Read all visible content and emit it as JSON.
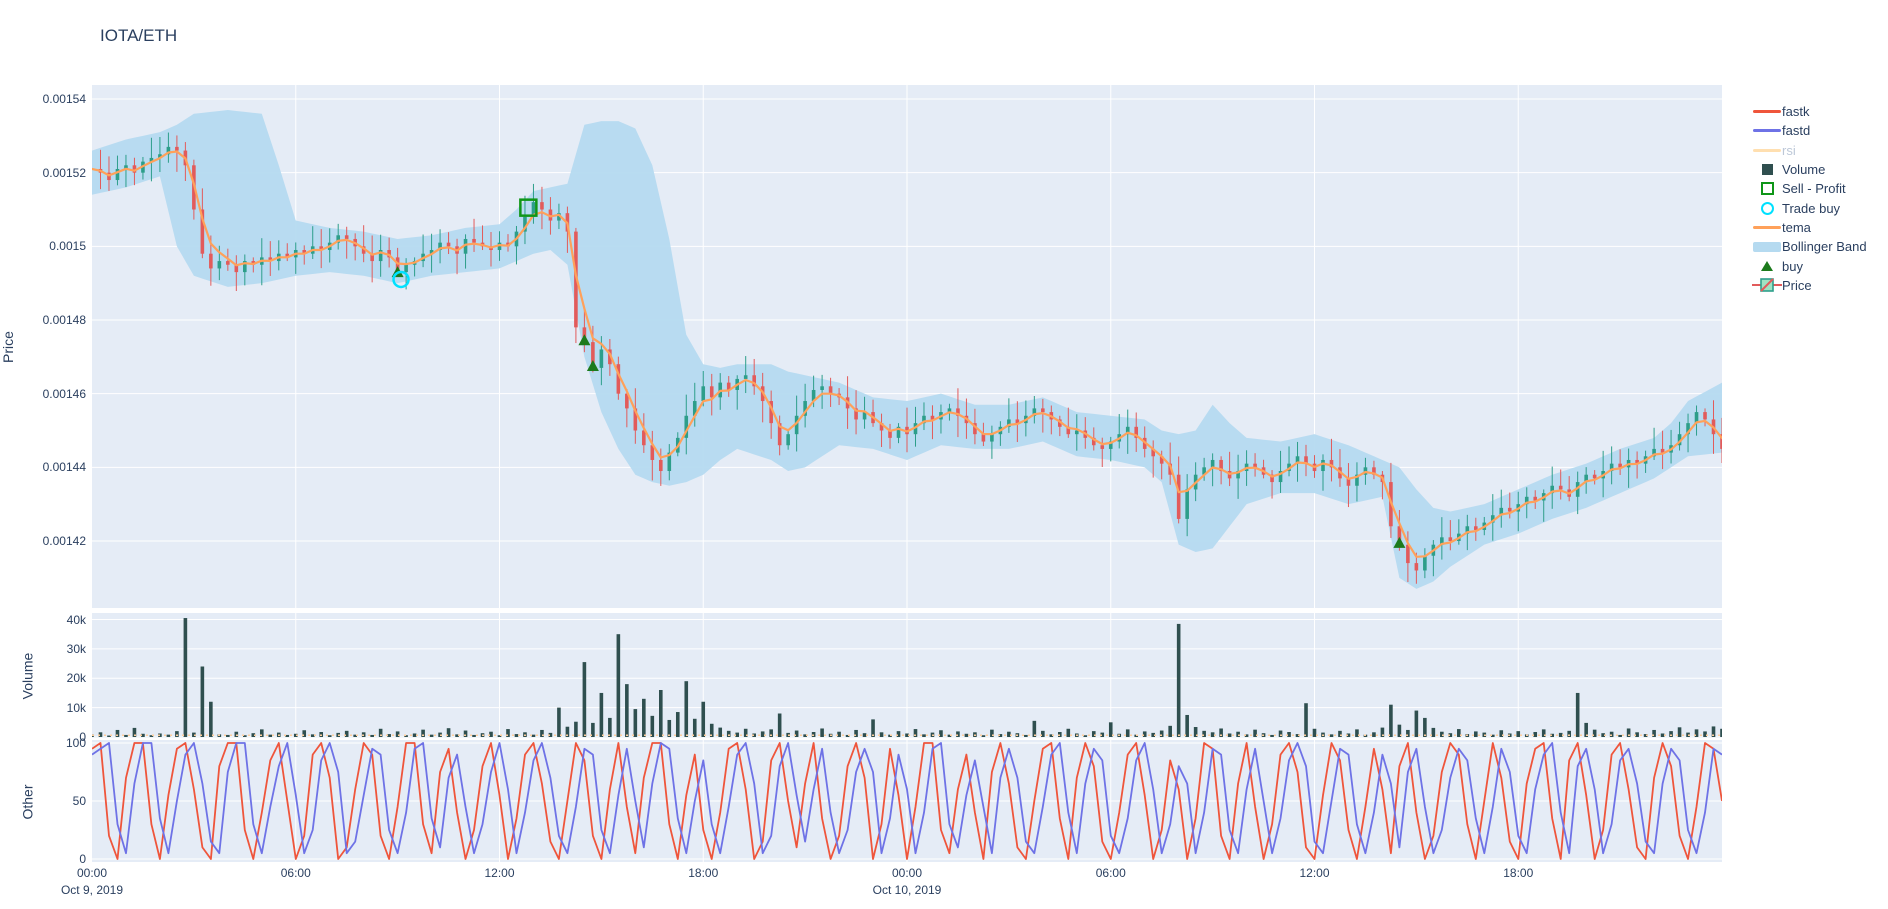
{
  "title": "IOTA/ETH",
  "colors": {
    "plot_bg": "#e5ecf6",
    "grid": "#ffffff",
    "text": "#2a3f5f",
    "dim_text": "#bdc8d8",
    "candle_up": "#2d9e8a",
    "candle_down": "#e25b5b",
    "tema": "#ffa15a",
    "band": "#b5daf0",
    "fastk": "#ef553b",
    "fastd": "#6e72e6",
    "rsi_dim": "#ffdfb0",
    "volume_bar": "#2f4f4f",
    "buy": "#1c7a1c",
    "sell": "#0f9618",
    "trade_buy": "#00e1ff",
    "vol_baseline": "#ffcf9e"
  },
  "legend": {
    "items": [
      {
        "label": "fastk",
        "type": "line",
        "color": "#ef553b",
        "dimmed": false
      },
      {
        "label": "fastd",
        "type": "line",
        "color": "#6e72e6",
        "dimmed": false
      },
      {
        "label": "rsi",
        "type": "line",
        "color": "#ffdfb0",
        "dimmed": true
      },
      {
        "label": "Volume",
        "type": "square",
        "color": "#2f4f4f",
        "dimmed": false
      },
      {
        "label": "Sell - Profit",
        "type": "square-open",
        "color": "#0f9618",
        "dimmed": false
      },
      {
        "label": "Trade buy",
        "type": "circle-open",
        "color": "#00e1ff",
        "dimmed": false
      },
      {
        "label": "tema",
        "type": "line",
        "color": "#ffa15a",
        "dimmed": false
      },
      {
        "label": "Bollinger Band",
        "type": "band",
        "color": "#b5daf0",
        "dimmed": false
      },
      {
        "label": "buy",
        "type": "triangle",
        "color": "#1c7a1c",
        "dimmed": false
      },
      {
        "label": "Price",
        "type": "candle",
        "color": "#2d9e8a",
        "dimmed": false
      }
    ]
  },
  "axes": {
    "price": {
      "title": "Price",
      "ticks": [
        {
          "label": "0.00154",
          "v": 154
        },
        {
          "label": "0.00152",
          "v": 152
        },
        {
          "label": "0.0015",
          "v": 150
        },
        {
          "label": "0.00148",
          "v": 148
        },
        {
          "label": "0.00146",
          "v": 146
        },
        {
          "label": "0.00144",
          "v": 144
        },
        {
          "label": "0.00142",
          "v": 142
        }
      ]
    },
    "volume": {
      "title": "Volume",
      "ticks": [
        {
          "label": "0",
          "v": 0
        },
        {
          "label": "10k",
          "v": 10000
        },
        {
          "label": "20k",
          "v": 20000
        },
        {
          "label": "30k",
          "v": 30000
        },
        {
          "label": "40k",
          "v": 40000
        }
      ]
    },
    "other": {
      "title": "Other",
      "ticks": [
        {
          "label": "0",
          "v": 0
        },
        {
          "label": "50",
          "v": 50
        },
        {
          "label": "100",
          "v": 100
        }
      ]
    },
    "x": {
      "ticks": [
        {
          "label": "00:00",
          "sub": "Oct 9, 2019",
          "t": 0
        },
        {
          "label": "06:00",
          "sub": "",
          "t": 6
        },
        {
          "label": "12:00",
          "sub": "",
          "t": 12
        },
        {
          "label": "18:00",
          "sub": "",
          "t": 18
        },
        {
          "label": "00:00",
          "sub": "Oct 10, 2019",
          "t": 24
        },
        {
          "label": "06:00",
          "sub": "",
          "t": 30
        },
        {
          "label": "12:00",
          "sub": "",
          "t": 36
        },
        {
          "label": "18:00",
          "sub": "",
          "t": 42
        }
      ]
    }
  },
  "chart_data": {
    "type": "candlestick",
    "pair": "IOTA/ETH",
    "time_axis": "hours from Oct 9 2019 00:00, total 48h (to Oct 11 00:00)",
    "step_h": 0.25,
    "hours_total": 48,
    "price_unit": 1e-05,
    "price_range": [
      140.2,
      154.4
    ],
    "close": [
      152.1,
      152.0,
      151.8,
      152.1,
      152.2,
      152.0,
      152.3,
      152.4,
      152.5,
      152.7,
      152.6,
      152.2,
      151.0,
      149.8,
      149.4,
      149.6,
      149.5,
      149.3,
      149.6,
      149.5,
      149.7,
      149.6,
      149.8,
      149.7,
      149.9,
      149.8,
      150.0,
      149.9,
      150.1,
      150.3,
      150.2,
      150.0,
      149.8,
      149.6,
      149.9,
      149.7,
      149.3,
      149.5,
      149.6,
      149.8,
      149.9,
      150.1,
      150.0,
      149.8,
      150.2,
      150.1,
      150.0,
      149.9,
      150.1,
      150.0,
      150.4,
      150.8,
      151.2,
      151.0,
      150.7,
      150.9,
      150.4,
      147.8,
      147.4,
      146.7,
      147.2,
      146.8,
      146.0,
      145.6,
      145.0,
      144.6,
      144.2,
      143.9,
      144.4,
      144.8,
      145.4,
      145.8,
      146.2,
      145.9,
      146.3,
      146.1,
      146.4,
      146.5,
      146.2,
      145.8,
      145.2,
      144.6,
      144.9,
      145.4,
      145.8,
      146.1,
      146.2,
      146.0,
      145.9,
      145.6,
      145.3,
      145.5,
      145.2,
      145.0,
      144.8,
      145.1,
      144.9,
      145.2,
      145.4,
      145.3,
      145.5,
      145.6,
      145.4,
      145.2,
      144.9,
      144.7,
      144.9,
      145.1,
      145.3,
      145.2,
      145.4,
      145.6,
      145.5,
      145.3,
      145.1,
      144.9,
      145.0,
      144.8,
      144.6,
      144.5,
      144.7,
      144.9,
      145.1,
      144.8,
      144.5,
      144.3,
      144.1,
      143.8,
      142.6,
      143.4,
      143.8,
      144.0,
      144.2,
      143.9,
      143.7,
      143.9,
      144.1,
      144.0,
      143.8,
      143.6,
      143.9,
      144.1,
      144.3,
      144.1,
      143.9,
      144.2,
      144.0,
      143.7,
      143.5,
      143.8,
      144.0,
      143.8,
      143.6,
      142.4,
      141.9,
      141.4,
      141.2,
      141.6,
      141.9,
      142.1,
      142.0,
      142.2,
      142.4,
      142.3,
      142.5,
      142.7,
      142.9,
      142.8,
      143.0,
      143.2,
      143.1,
      143.3,
      143.5,
      143.4,
      143.2,
      143.6,
      143.8,
      143.7,
      143.9,
      144.1,
      144.0,
      144.2,
      144.1,
      144.3,
      144.5,
      144.4,
      144.6,
      144.9,
      145.2,
      145.5,
      145.3,
      144.9,
      144.5
    ],
    "bollinger": {
      "t": [
        0,
        1,
        2,
        2.5,
        3,
        4,
        5,
        5.5,
        6,
        7,
        8,
        9,
        10,
        11,
        12,
        12.5,
        13,
        13.5,
        14,
        14.5,
        15,
        15.5,
        16,
        16.5,
        17,
        17.5,
        18,
        18.5,
        19,
        20,
        20.5,
        21,
        22,
        23,
        24,
        25,
        26,
        27,
        28,
        29,
        30,
        31,
        31.5,
        32,
        32.5,
        33,
        33.5,
        34,
        35,
        36,
        37,
        38,
        38.5,
        39,
        39.5,
        40,
        41,
        42,
        43,
        44,
        45,
        46,
        46.5,
        47,
        48
      ],
      "upper": [
        152.6,
        152.9,
        153.1,
        153.3,
        153.6,
        153.7,
        153.6,
        152.2,
        150.7,
        150.5,
        150.4,
        150.2,
        150.3,
        150.5,
        150.6,
        151.0,
        151.5,
        151.6,
        151.7,
        153.3,
        153.4,
        153.4,
        153.2,
        152.2,
        150.2,
        147.6,
        146.8,
        146.7,
        146.8,
        146.8,
        146.6,
        146.5,
        146.3,
        145.9,
        145.8,
        146.0,
        145.7,
        145.7,
        145.9,
        145.5,
        145.4,
        145.3,
        145.0,
        144.9,
        145.0,
        145.7,
        145.2,
        144.8,
        144.7,
        144.9,
        144.6,
        144.2,
        144.0,
        143.4,
        142.9,
        142.8,
        143.0,
        143.4,
        143.8,
        144.1,
        144.5,
        144.8,
        145.2,
        145.8,
        146.3
      ],
      "lower": [
        151.4,
        151.6,
        151.9,
        150.0,
        149.2,
        148.9,
        149.0,
        149.1,
        149.2,
        149.3,
        149.2,
        149.0,
        149.2,
        149.3,
        149.4,
        149.6,
        149.8,
        149.9,
        149.5,
        147.0,
        145.5,
        144.5,
        143.8,
        143.6,
        143.5,
        143.6,
        143.8,
        144.2,
        144.5,
        144.2,
        143.9,
        144.0,
        144.6,
        144.5,
        144.2,
        144.6,
        144.5,
        144.5,
        144.7,
        144.3,
        144.2,
        144.0,
        143.6,
        141.9,
        141.7,
        141.8,
        142.4,
        143.0,
        143.3,
        143.3,
        143.0,
        143.2,
        141.0,
        140.7,
        140.9,
        141.3,
        141.9,
        142.2,
        142.6,
        142.9,
        143.3,
        143.7,
        144.0,
        144.3,
        144.4
      ]
    },
    "volume": [
      900,
      1600,
      500,
      2400,
      700,
      3100,
      1100,
      600,
      1200,
      800,
      2000,
      40500,
      1500,
      24000,
      12000,
      900,
      700,
      1800,
      600,
      1300,
      2600,
      800,
      1500,
      700,
      1100,
      2300,
      900,
      1700,
      600,
      1400,
      2100,
      800,
      1600,
      700,
      2800,
      1000,
      1900,
      600,
      1200,
      2500,
      800,
      1500,
      3000,
      900,
      2200,
      700,
      1300,
      1800,
      600,
      2700,
      1000,
      1600,
      800,
      2400,
      1400,
      10000,
      3500,
      5200,
      25500,
      4800,
      15000,
      6500,
      35000,
      18000,
      9500,
      13000,
      7200,
      16000,
      5800,
      8500,
      19000,
      6200,
      12000,
      4500,
      3200,
      2100,
      1500,
      2800,
      1200,
      1900,
      2600,
      8000,
      1400,
      2200,
      900,
      1700,
      2900,
      1100,
      1800,
      700,
      2400,
      1300,
      6000,
      1600,
      800,
      2000,
      1200,
      2700,
      900,
      1500,
      2300,
      800,
      1900,
      1100,
      1600,
      600,
      2500,
      1000,
      1800,
      1300,
      700,
      5500,
      2100,
      900,
      1700,
      2800,
      1200,
      600,
      2000,
      1500,
      5000,
      1100,
      2600,
      800,
      1900,
      1400,
      2200,
      3800,
      38500,
      7500,
      3400,
      2100,
      1600,
      2900,
      1200,
      1800,
      900,
      2500,
      1300,
      700,
      2200,
      1700,
      1000,
      11500,
      2800,
      1500,
      900,
      2100,
      1200,
      2600,
      800,
      1600,
      3200,
      11000,
      4200,
      2400,
      9000,
      6500,
      3100,
      1800,
      1300,
      2700,
      1000,
      1900,
      1500,
      800,
      2300,
      1200,
      2000,
      900,
      1700,
      2600,
      1100,
      1400,
      2100,
      15000,
      4800,
      2500,
      1300,
      1800,
      700,
      2900,
      1600,
      1000,
      2400,
      1200,
      2000,
      3300,
      1500,
      2600,
      1900,
      3600,
      2800
    ],
    "fastk": [
      95,
      100,
      20,
      0,
      70,
      100,
      100,
      30,
      0,
      55,
      95,
      100,
      60,
      10,
      0,
      80,
      100,
      100,
      25,
      0,
      40,
      85,
      100,
      50,
      0,
      20,
      90,
      100,
      70,
      0,
      10,
      60,
      100,
      90,
      20,
      0,
      45,
      100,
      100,
      30,
      5,
      75,
      95,
      40,
      0,
      25,
      80,
      100,
      55,
      0,
      35,
      90,
      100,
      65,
      15,
      0,
      50,
      100,
      85,
      20,
      0,
      60,
      100,
      45,
      5,
      70,
      100,
      100,
      30,
      0,
      55,
      90,
      25,
      0,
      40,
      95,
      100,
      60,
      0,
      15,
      85,
      100,
      50,
      10,
      65,
      100,
      35,
      0,
      20,
      80,
      100,
      70,
      0,
      30,
      95,
      55,
      0,
      45,
      100,
      100,
      25,
      5,
      60,
      90,
      40,
      0,
      75,
      100,
      65,
      10,
      0,
      50,
      95,
      100,
      35,
      0,
      70,
      100,
      80,
      15,
      0,
      40,
      90,
      100,
      55,
      0,
      25,
      85,
      60,
      0,
      35,
      100,
      95,
      20,
      0,
      65,
      100,
      45,
      0,
      30,
      90,
      100,
      75,
      10,
      0,
      55,
      100,
      85,
      25,
      0,
      45,
      95,
      60,
      5,
      80,
      100,
      40,
      0,
      20,
      75,
      100,
      90,
      30,
      0,
      50,
      100,
      70,
      15,
      0,
      65,
      95,
      100,
      35,
      0,
      85,
      100,
      55,
      0,
      25,
      90,
      100,
      60,
      10,
      0,
      70,
      100,
      80,
      20,
      0,
      45,
      100,
      95,
      50
    ],
    "fastd": [
      90,
      95,
      100,
      30,
      5,
      65,
      100,
      100,
      35,
      5,
      50,
      90,
      100,
      65,
      15,
      5,
      75,
      100,
      100,
      30,
      5,
      45,
      80,
      100,
      55,
      5,
      25,
      85,
      100,
      75,
      5,
      15,
      55,
      95,
      90,
      25,
      5,
      40,
      95,
      100,
      35,
      10,
      70,
      90,
      45,
      5,
      30,
      75,
      100,
      60,
      5,
      40,
      85,
      100,
      70,
      20,
      5,
      45,
      95,
      90,
      25,
      5,
      55,
      95,
      50,
      10,
      65,
      100,
      95,
      35,
      5,
      50,
      85,
      30,
      5,
      45,
      90,
      100,
      65,
      5,
      20,
      80,
      100,
      55,
      15,
      60,
      95,
      40,
      5,
      25,
      75,
      95,
      75,
      5,
      35,
      90,
      60,
      5,
      40,
      95,
      100,
      30,
      10,
      55,
      85,
      45,
      5,
      70,
      95,
      70,
      15,
      5,
      45,
      90,
      100,
      40,
      5,
      65,
      95,
      85,
      20,
      5,
      35,
      85,
      100,
      60,
      5,
      30,
      80,
      65,
      5,
      40,
      95,
      90,
      25,
      5,
      60,
      95,
      50,
      5,
      35,
      85,
      100,
      80,
      15,
      5,
      50,
      95,
      90,
      30,
      5,
      40,
      90,
      65,
      10,
      75,
      95,
      45,
      5,
      25,
      70,
      95,
      85,
      35,
      5,
      45,
      95,
      75,
      20,
      5,
      60,
      90,
      100,
      40,
      5,
      80,
      95,
      60,
      5,
      30,
      85,
      95,
      65,
      15,
      5,
      65,
      95,
      85,
      25,
      5,
      40,
      95,
      90
    ],
    "markers": {
      "buy": [
        [
          9.0,
          149.3
        ],
        [
          14.5,
          147.45
        ],
        [
          14.75,
          146.75
        ],
        [
          38.5,
          141.95
        ]
      ],
      "trade_buy": [
        [
          9.1,
          149.1
        ]
      ],
      "sell_profit": [
        [
          12.85,
          151.05
        ]
      ]
    }
  }
}
